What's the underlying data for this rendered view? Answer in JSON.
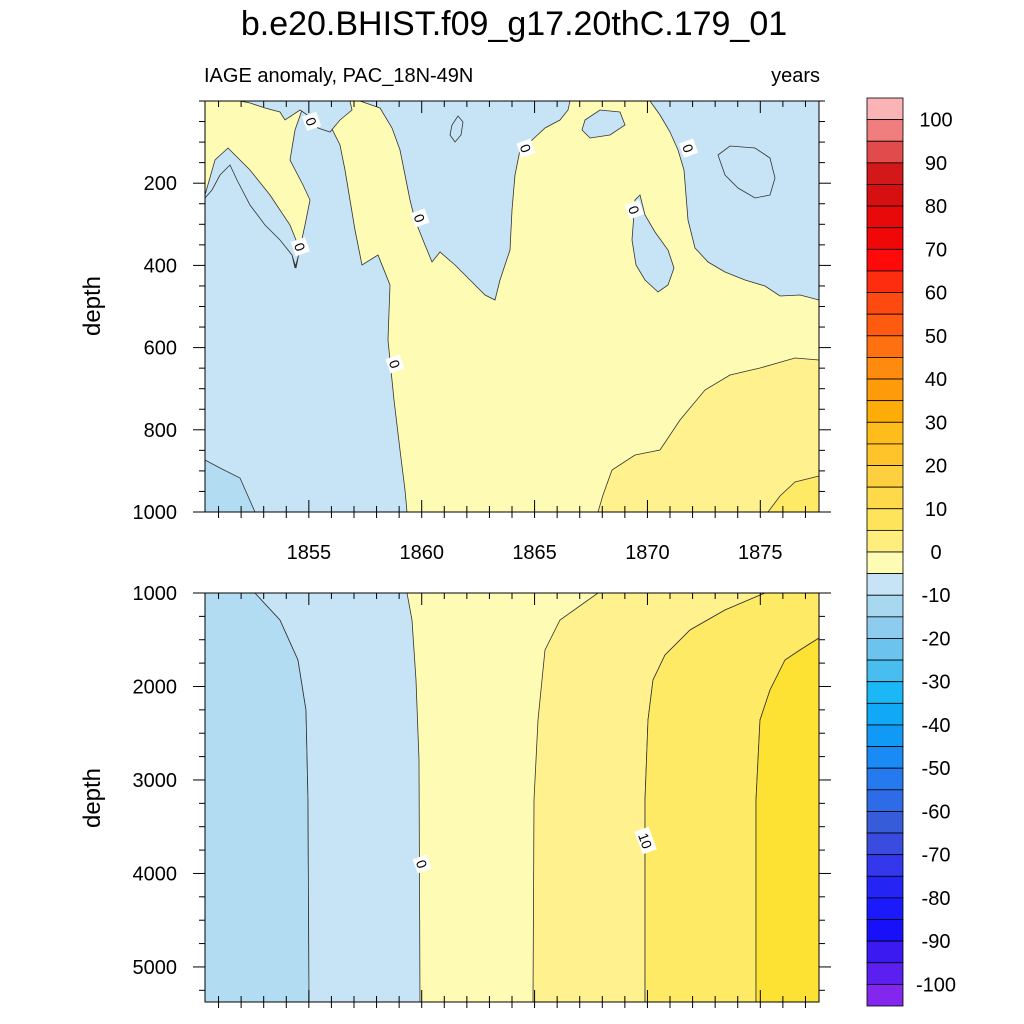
{
  "figure": {
    "title": "b.e20.BHIST.f09_g17.20thC.179_01",
    "subtitle_left": "IAGE anomaly, PAC_18N-49N",
    "subtitle_right": "years"
  },
  "chart_data": [
    {
      "type": "heatmap",
      "name": "upper",
      "xlabel": "",
      "ylabel": "depth",
      "xlim": [
        1850.4,
        1877.6
      ],
      "ylim": [
        1000,
        0
      ],
      "x_ticks": [
        1855,
        1860,
        1865,
        1870,
        1875
      ],
      "y_ticks": [
        200,
        400,
        600,
        800,
        1000
      ],
      "contour_line_labels": [
        {
          "text": "0",
          "x": 1855.1,
          "y": 50
        },
        {
          "text": "0",
          "x": 1854.6,
          "y": 355
        },
        {
          "text": "0",
          "x": 1858.8,
          "y": 640
        },
        {
          "text": "0",
          "x": 1859.9,
          "y": 285
        },
        {
          "text": "0",
          "x": 1864.6,
          "y": 115
        },
        {
          "text": "0",
          "x": 1869.4,
          "y": 265
        },
        {
          "text": "0",
          "x": 1871.8,
          "y": 115
        }
      ],
      "regions": [
        {
          "level": "-5 to 0",
          "color": "#C6E4F5"
        },
        {
          "level": "0 to 5",
          "color": "#FEFBB4"
        },
        {
          "level": "5 to 10",
          "color": "#FEF18E"
        },
        {
          "level": "-10 to -5",
          "color": "#B1DCF2"
        }
      ]
    },
    {
      "type": "heatmap",
      "name": "lower",
      "xlabel": "",
      "ylabel": "depth",
      "xlim": [
        1850.4,
        1877.6
      ],
      "ylim": [
        5375,
        1000
      ],
      "x_ticks": [
        1855,
        1860,
        1865,
        1870,
        1875
      ],
      "y_ticks": [
        1000,
        2000,
        3000,
        4000,
        5000
      ],
      "contour_line_labels": [
        {
          "text": "0",
          "x": 1860.0,
          "y": 3900
        },
        {
          "text": "10",
          "x": 1869.9,
          "y": 3650
        }
      ],
      "regions": [
        {
          "level": "-10 to -5",
          "color": "#B1DCF2"
        },
        {
          "level": "-5 to 0",
          "color": "#C6E4F5"
        },
        {
          "level": "0 to 5",
          "color": "#FEFBB4"
        },
        {
          "level": "5 to 10",
          "color": "#FEF18E"
        },
        {
          "level": "10 to 15",
          "color": "#FEEA65"
        },
        {
          "level": "15 to 20",
          "color": "#FEE233"
        }
      ]
    }
  ],
  "colorbar": {
    "labels": [
      "100",
      "90",
      "80",
      "70",
      "60",
      "50",
      "40",
      "30",
      "20",
      "10",
      "0",
      "-10",
      "-20",
      "-30",
      "-40",
      "-50",
      "-60",
      "-70",
      "-80",
      "-90",
      "-100"
    ],
    "boundaries": [
      105,
      100,
      95,
      90,
      85,
      80,
      75,
      70,
      65,
      60,
      55,
      50,
      45,
      40,
      35,
      30,
      25,
      20,
      15,
      10,
      5,
      0,
      -5,
      -10,
      -15,
      -20,
      -25,
      -30,
      -35,
      -40,
      -45,
      -50,
      -55,
      -60,
      -65,
      -70,
      -75,
      -80,
      -85,
      -90,
      -95,
      -100,
      -105
    ],
    "colors": [
      "#FBB4B6",
      "#F07E7E",
      "#E24B4B",
      "#D21818",
      "#D61010",
      "#E80A0A",
      "#F00707",
      "#FF0A0A",
      "#FE2D10",
      "#FE4A10",
      "#FE5A10",
      "#FF7010",
      "#FE8A10",
      "#FE9B0A",
      "#FEAC08",
      "#FEBD1A",
      "#FEC42A",
      "#FED040",
      "#FEDA4A",
      "#FEE45A",
      "#FEEE7E",
      "#FEFBB4",
      "#C6E4F5",
      "#A8D8F0",
      "#8DCCEE",
      "#6BC3EE",
      "#48BEF0",
      "#1CB7F5",
      "#11A8F5",
      "#119AF5",
      "#1A8AF5",
      "#247AEE",
      "#2D6CE6",
      "#365CDA",
      "#3A4BE0",
      "#3438EC",
      "#2424F5",
      "#1A1AFA",
      "#1710F8",
      "#3A1AF0",
      "#5B1FF0",
      "#8427EE"
    ]
  }
}
